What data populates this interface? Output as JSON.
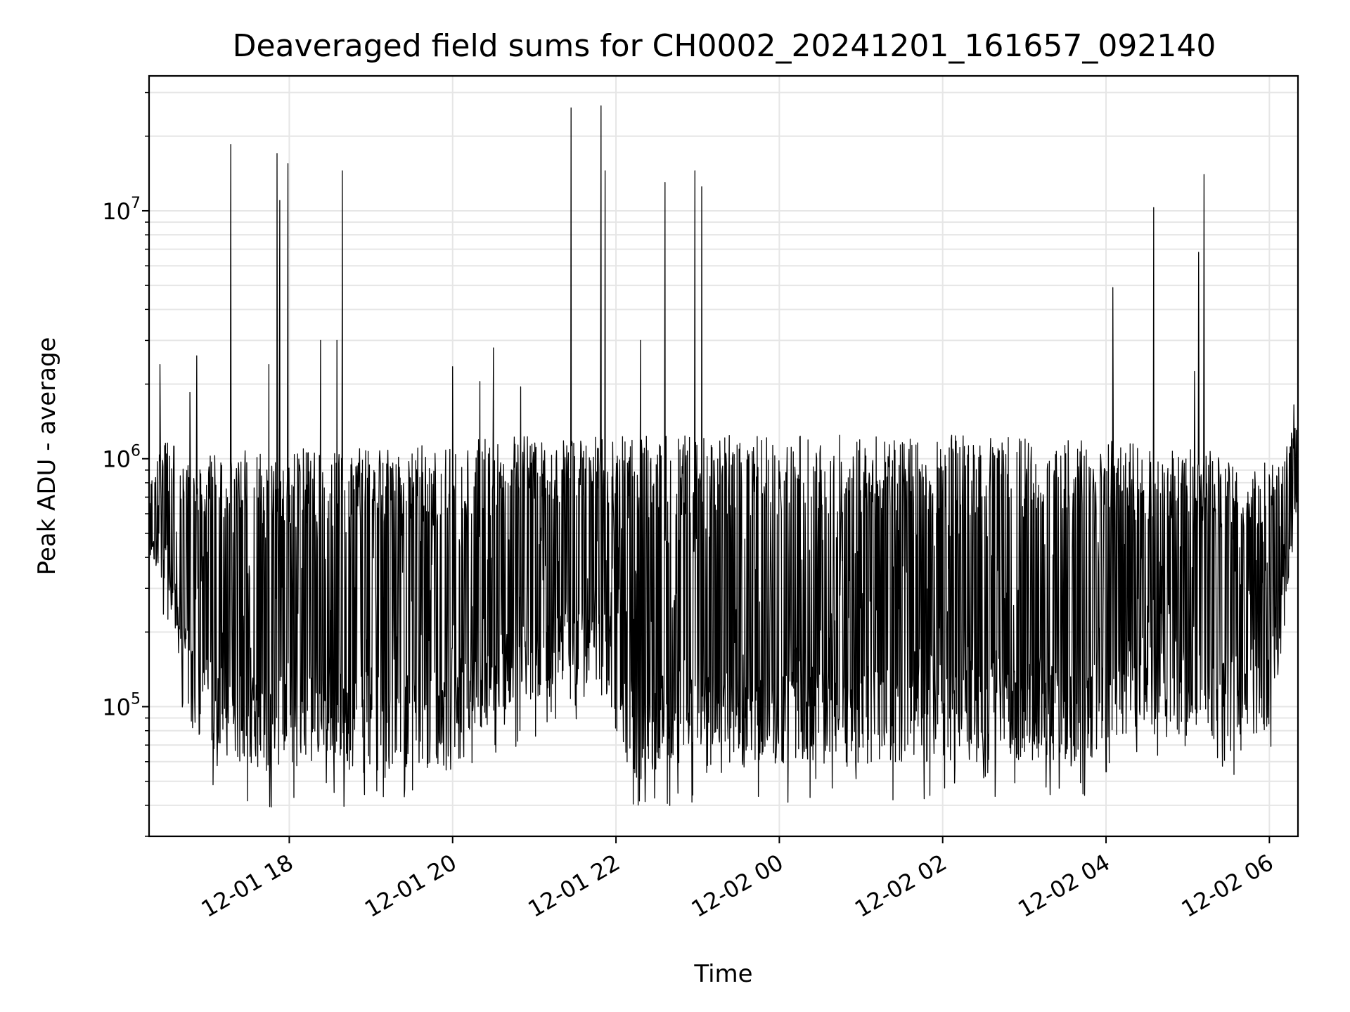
{
  "chart_data": {
    "type": "line",
    "title": "Deaveraged field sums for CH0002_20241201_161657_092140",
    "xlabel": "Time",
    "ylabel": "Peak ADU - average",
    "yscale": "log",
    "grid": true,
    "xlim": [
      "2024-12-01 16:17",
      "2024-12-02 06:21"
    ],
    "ylim": [
      30000,
      35000000
    ],
    "x_ticks": [
      {
        "value": "2024-12-01 18:00",
        "label": "12-01 18"
      },
      {
        "value": "2024-12-01 20:00",
        "label": "12-01 20"
      },
      {
        "value": "2024-12-01 22:00",
        "label": "12-01 22"
      },
      {
        "value": "2024-12-02 00:00",
        "label": "12-02 00"
      },
      {
        "value": "2024-12-02 02:00",
        "label": "12-02 02"
      },
      {
        "value": "2024-12-02 04:00",
        "label": "12-02 04"
      },
      {
        "value": "2024-12-02 06:00",
        "label": "12-02 06"
      }
    ],
    "y_ticks": [
      {
        "value": 100000,
        "base": "10",
        "exp": "5"
      },
      {
        "value": 1000000,
        "base": "10",
        "exp": "6"
      },
      {
        "value": 10000000,
        "base": "10",
        "exp": "7"
      }
    ],
    "line_color": "#000000",
    "envelope": [
      {
        "t": "2024-12-01 16:17",
        "lo": 400000,
        "hi": 800000
      },
      {
        "t": "2024-12-01 16:30",
        "lo": 300000,
        "hi": 1300000
      },
      {
        "t": "2024-12-01 16:40",
        "lo": 150000,
        "hi": 1000000
      },
      {
        "t": "2024-12-01 16:50",
        "lo": 75000,
        "hi": 1000000
      },
      {
        "t": "2024-12-01 17:30",
        "lo": 55000,
        "hi": 1100000
      },
      {
        "t": "2024-12-01 19:00",
        "lo": 55000,
        "hi": 1100000
      },
      {
        "t": "2024-12-01 20:00",
        "lo": 55000,
        "hi": 1150000
      },
      {
        "t": "2024-12-01 20:30",
        "lo": 90000,
        "hi": 1250000
      },
      {
        "t": "2024-12-01 21:50",
        "lo": 130000,
        "hi": 1250000
      },
      {
        "t": "2024-12-01 22:00",
        "lo": 55000,
        "hi": 1250000
      },
      {
        "t": "2024-12-02 02:00",
        "lo": 60000,
        "hi": 1250000
      },
      {
        "t": "2024-12-02 03:50",
        "lo": 60000,
        "hi": 1200000
      },
      {
        "t": "2024-12-02 04:00",
        "lo": 75000,
        "hi": 1200000
      },
      {
        "t": "2024-12-02 05:30",
        "lo": 75000,
        "hi": 1050000
      },
      {
        "t": "2024-12-02 06:00",
        "lo": 75000,
        "hi": 1000000
      },
      {
        "t": "2024-12-02 06:05",
        "lo": 150000,
        "hi": 900000
      },
      {
        "t": "2024-12-02 06:21",
        "lo": 600000,
        "hi": 1500000
      }
    ],
    "spikes": [
      {
        "t": "2024-12-01 16:25",
        "y": 2400000
      },
      {
        "t": "2024-12-01 16:47",
        "y": 1850000
      },
      {
        "t": "2024-12-01 16:52",
        "y": 2600000
      },
      {
        "t": "2024-12-01 17:17",
        "y": 18500000
      },
      {
        "t": "2024-12-01 17:45",
        "y": 2400000
      },
      {
        "t": "2024-12-01 17:51",
        "y": 17000000
      },
      {
        "t": "2024-12-01 17:53",
        "y": 11000000
      },
      {
        "t": "2024-12-01 17:59",
        "y": 15500000
      },
      {
        "t": "2024-12-01 18:23",
        "y": 3000000
      },
      {
        "t": "2024-12-01 18:35",
        "y": 3000000
      },
      {
        "t": "2024-12-01 18:39",
        "y": 14500000
      },
      {
        "t": "2024-12-01 20:00",
        "y": 2350000
      },
      {
        "t": "2024-12-01 20:20",
        "y": 2050000
      },
      {
        "t": "2024-12-01 20:30",
        "y": 2800000
      },
      {
        "t": "2024-12-01 20:50",
        "y": 1950000
      },
      {
        "t": "2024-12-01 21:27",
        "y": 26000000
      },
      {
        "t": "2024-12-01 21:49",
        "y": 26500000
      },
      {
        "t": "2024-12-01 21:52",
        "y": 14500000
      },
      {
        "t": "2024-12-01 22:18",
        "y": 3000000
      },
      {
        "t": "2024-12-01 22:36",
        "y": 13000000
      },
      {
        "t": "2024-12-01 22:58",
        "y": 14500000
      },
      {
        "t": "2024-12-01 23:03",
        "y": 12500000
      },
      {
        "t": "2024-12-02 04:05",
        "y": 4900000
      },
      {
        "t": "2024-12-02 04:35",
        "y": 10300000
      },
      {
        "t": "2024-12-02 05:05",
        "y": 2250000
      },
      {
        "t": "2024-12-02 05:08",
        "y": 6800000
      },
      {
        "t": "2024-12-02 05:12",
        "y": 14000000
      },
      {
        "t": "2024-12-02 06:18",
        "y": 1650000
      }
    ]
  }
}
